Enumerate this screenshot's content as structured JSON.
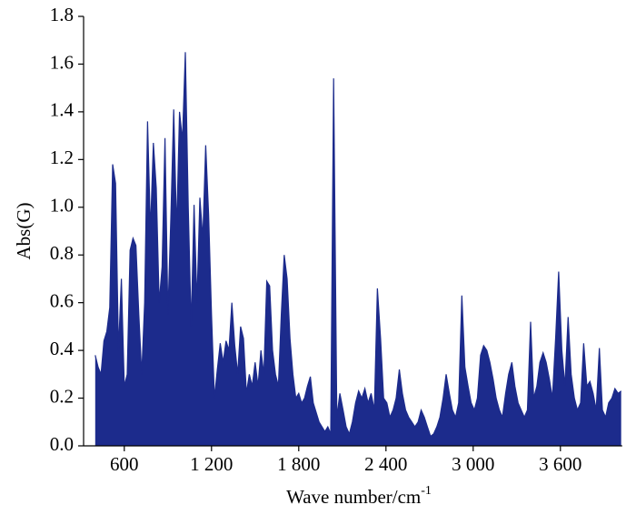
{
  "chart_data": {
    "type": "area",
    "ylabel": "Abs(G)",
    "xlabel": "Wave number/cm",
    "xlabel_superscript": "-1",
    "color": "#1c2b8c",
    "xlim": [
      320,
      4050
    ],
    "xticks": [
      600,
      {
        "value": 1200,
        "label": "1 200"
      },
      {
        "value": 1800,
        "label": "1 800"
      },
      {
        "value": 2400,
        "label": "2 400"
      },
      {
        "value": 3000,
        "label": "3 000"
      },
      {
        "value": 3600,
        "label": "3 600"
      }
    ],
    "ylim": [
      0,
      1.8
    ],
    "yticks": [
      {
        "value": 0,
        "label": "0.0"
      },
      0.2,
      0.4,
      0.6,
      0.8,
      {
        "value": 1,
        "label": "1.0"
      },
      1.2,
      1.4,
      1.6,
      1.8
    ],
    "x": [
      400,
      420,
      440,
      460,
      480,
      500,
      520,
      540,
      560,
      580,
      600,
      620,
      640,
      660,
      680,
      700,
      720,
      740,
      760,
      780,
      800,
      820,
      840,
      860,
      880,
      900,
      920,
      940,
      960,
      980,
      1000,
      1020,
      1040,
      1060,
      1080,
      1100,
      1120,
      1140,
      1160,
      1180,
      1200,
      1220,
      1240,
      1260,
      1280,
      1300,
      1320,
      1340,
      1360,
      1380,
      1400,
      1420,
      1440,
      1460,
      1480,
      1500,
      1520,
      1540,
      1560,
      1580,
      1600,
      1620,
      1640,
      1660,
      1680,
      1700,
      1720,
      1740,
      1760,
      1780,
      1800,
      1820,
      1840,
      1860,
      1880,
      1900,
      1920,
      1940,
      1960,
      1980,
      2000,
      2020,
      2040,
      2062,
      2083,
      2105,
      2126,
      2148,
      2169,
      2191,
      2212,
      2234,
      2255,
      2277,
      2298,
      2320,
      2341,
      2363,
      2384,
      2406,
      2427,
      2449,
      2470,
      2492,
      2513,
      2535,
      2556,
      2578,
      2599,
      2621,
      2642,
      2664,
      2685,
      2707,
      2728,
      2750,
      2771,
      2793,
      2814,
      2836,
      2857,
      2879,
      2900,
      2922,
      2943,
      2965,
      2986,
      3008,
      3029,
      3051,
      3072,
      3094,
      3115,
      3137,
      3158,
      3180,
      3201,
      3223,
      3244,
      3266,
      3287,
      3309,
      3330,
      3352,
      3373,
      3395,
      3416,
      3438,
      3459,
      3481,
      3502,
      3524,
      3545,
      3567,
      3588,
      3610,
      3631,
      3653,
      3674,
      3696,
      3717,
      3739,
      3760,
      3782,
      3803,
      3825,
      3846,
      3868,
      3889,
      3911,
      3932,
      3954,
      3975,
      3997,
      4018
    ],
    "values": [
      0.38,
      0.33,
      0.3,
      0.44,
      0.48,
      0.58,
      1.18,
      1.1,
      0.4,
      0.7,
      0.25,
      0.3,
      0.82,
      0.87,
      0.84,
      0.55,
      0.3,
      0.6,
      1.36,
      0.9,
      1.27,
      1.08,
      0.6,
      0.75,
      1.29,
      0.55,
      0.95,
      1.41,
      0.9,
      1.4,
      1.28,
      1.65,
      1.0,
      0.5,
      1.01,
      0.6,
      1.04,
      0.87,
      1.26,
      0.97,
      0.55,
      0.2,
      0.32,
      0.43,
      0.35,
      0.44,
      0.4,
      0.6,
      0.42,
      0.3,
      0.5,
      0.45,
      0.22,
      0.3,
      0.25,
      0.35,
      0.25,
      0.4,
      0.3,
      0.69,
      0.67,
      0.4,
      0.3,
      0.25,
      0.55,
      0.8,
      0.7,
      0.45,
      0.3,
      0.2,
      0.22,
      0.18,
      0.2,
      0.25,
      0.29,
      0.18,
      0.14,
      0.1,
      0.08,
      0.06,
      0.08,
      0.05,
      1.54,
      0.12,
      0.22,
      0.15,
      0.08,
      0.05,
      0.1,
      0.18,
      0.23,
      0.2,
      0.24,
      0.18,
      0.22,
      0.15,
      0.66,
      0.45,
      0.2,
      0.18,
      0.12,
      0.15,
      0.2,
      0.32,
      0.22,
      0.15,
      0.12,
      0.1,
      0.08,
      0.1,
      0.15,
      0.12,
      0.08,
      0.04,
      0.05,
      0.08,
      0.12,
      0.2,
      0.3,
      0.22,
      0.15,
      0.12,
      0.18,
      0.63,
      0.33,
      0.25,
      0.18,
      0.15,
      0.2,
      0.38,
      0.42,
      0.4,
      0.35,
      0.28,
      0.2,
      0.15,
      0.12,
      0.22,
      0.3,
      0.35,
      0.25,
      0.18,
      0.15,
      0.12,
      0.15,
      0.52,
      0.2,
      0.25,
      0.35,
      0.39,
      0.35,
      0.28,
      0.2,
      0.45,
      0.73,
      0.4,
      0.25,
      0.54,
      0.3,
      0.2,
      0.15,
      0.18,
      0.43,
      0.25,
      0.27,
      0.22,
      0.15,
      0.41,
      0.15,
      0.12,
      0.18,
      0.2,
      0.24,
      0.22,
      0.23
    ]
  }
}
